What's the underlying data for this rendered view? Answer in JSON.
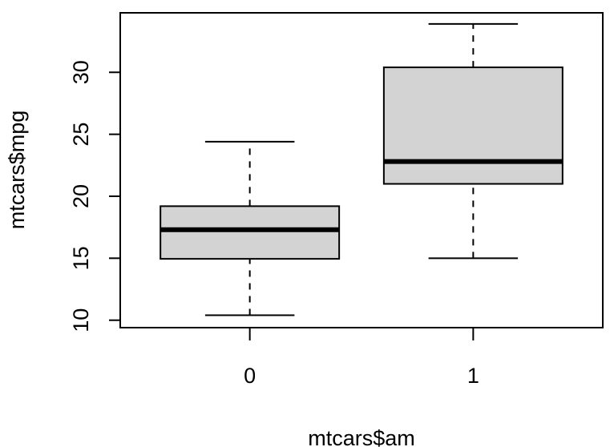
{
  "chart_data": {
    "type": "boxplot",
    "xlabel": "mtcars$am",
    "ylabel": "mtcars$mpg",
    "categories": [
      "0",
      "1"
    ],
    "y_ticks": [
      10,
      15,
      20,
      25,
      30
    ],
    "y_tick_labels": [
      "10",
      "15",
      "20",
      "25",
      "30"
    ],
    "ylim": [
      9.4,
      34.8
    ],
    "grid": false,
    "legend": "none",
    "boxes": [
      {
        "category": "0",
        "whisker_low": 10.4,
        "q1": 14.95,
        "median": 17.3,
        "q3": 19.2,
        "whisker_high": 24.4
      },
      {
        "category": "1",
        "whisker_low": 15.0,
        "q1": 21.0,
        "median": 22.8,
        "q3": 30.4,
        "whisker_high": 33.9
      }
    ],
    "colors": {
      "box_fill": "#d3d3d3",
      "stroke": "#000000"
    }
  }
}
